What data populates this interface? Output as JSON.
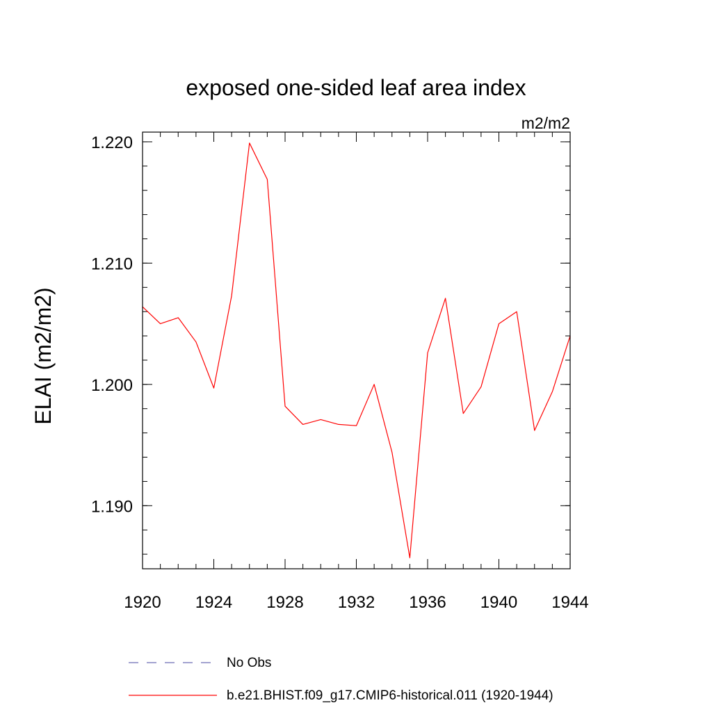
{
  "chart_data": {
    "type": "line",
    "title": "exposed one-sided leaf area index",
    "units": "m2/m2",
    "ylabel": "ELAI  (m2/m2)",
    "xlabel": "",
    "xlim": [
      1920,
      1944
    ],
    "ylim": [
      1.1848,
      1.2208
    ],
    "x_ticks": [
      1920,
      1924,
      1928,
      1932,
      1936,
      1940,
      1944
    ],
    "y_ticks": [
      1.19,
      1.2,
      1.21,
      1.22
    ],
    "y_tick_labels": [
      "1.190",
      "1.200",
      "1.210",
      "1.220"
    ],
    "y_minor_step": 0.002,
    "x_minor_step": 1,
    "grid": false,
    "legend_placement": "bottom",
    "series": [
      {
        "name": "b.e21.BHIST.f09_g17.CMIP6-historical.011 (1920-1944)",
        "color": "#ff0000",
        "style": "solid",
        "x": [
          1920,
          1921,
          1922,
          1923,
          1924,
          1925,
          1926,
          1927,
          1928,
          1929,
          1930,
          1931,
          1932,
          1933,
          1934,
          1935,
          1936,
          1937,
          1938,
          1939,
          1940,
          1941,
          1942,
          1943,
          1944
        ],
        "values": [
          1.2064,
          1.205,
          1.2055,
          1.2035,
          1.1997,
          1.2073,
          1.2199,
          1.2169,
          1.1982,
          1.1967,
          1.1971,
          1.1967,
          1.1966,
          1.2,
          1.1944,
          1.1857,
          1.2026,
          1.2071,
          1.1976,
          1.1998,
          1.205,
          1.206,
          1.1962,
          1.1994,
          1.204
        ]
      }
    ],
    "legend": [
      {
        "label": "No Obs",
        "color": "#6a6ab4",
        "style": "dashed"
      },
      {
        "label": "b.e21.BHIST.f09_g17.CMIP6-historical.011 (1920-1944)",
        "color": "#ff0000",
        "style": "solid"
      }
    ]
  }
}
